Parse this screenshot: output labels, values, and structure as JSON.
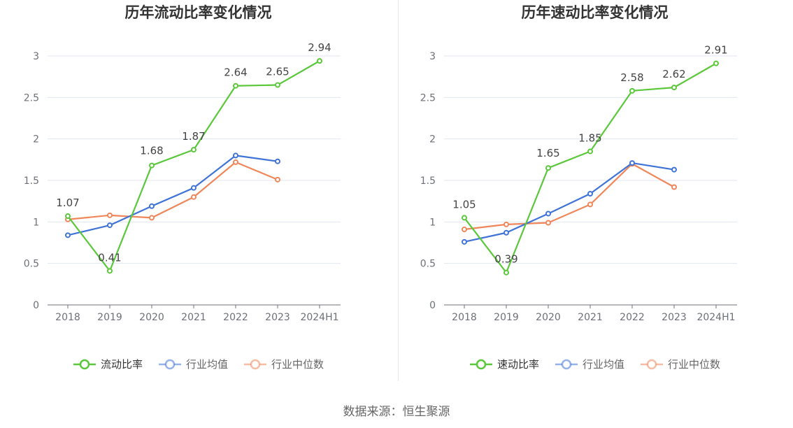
{
  "chart_data": [
    {
      "type": "line",
      "title": "历年流动比率变化情况",
      "categories": [
        "2018",
        "2019",
        "2020",
        "2021",
        "2022",
        "2023",
        "2024H1"
      ],
      "ylim": [
        0,
        3
      ],
      "yticks": [
        "0",
        "0.5",
        "1",
        "1.5",
        "2",
        "2.5",
        "3"
      ],
      "grid": true,
      "legend_position": "bottom",
      "series": [
        {
          "name": "流动比率",
          "color": "#5ac83a",
          "values": [
            1.07,
            0.41,
            1.68,
            1.87,
            2.64,
            2.65,
            2.94
          ],
          "labels": [
            "1.07",
            "0.41",
            "1.68",
            "1.87",
            "2.64",
            "2.65",
            "2.94"
          ]
        },
        {
          "name": "行业均值",
          "color": "#3f73d8",
          "values": [
            0.84,
            0.96,
            1.19,
            1.41,
            1.8,
            1.73,
            null
          ]
        },
        {
          "name": "行业中位数",
          "color": "#f0875a",
          "values": [
            1.03,
            1.08,
            1.05,
            1.3,
            1.72,
            1.51,
            null
          ]
        }
      ]
    },
    {
      "type": "line",
      "title": "历年速动比率变化情况",
      "categories": [
        "2018",
        "2019",
        "2020",
        "2021",
        "2022",
        "2023",
        "2024H1"
      ],
      "ylim": [
        0,
        3
      ],
      "yticks": [
        "0",
        "0.5",
        "1",
        "1.5",
        "2",
        "2.5",
        "3"
      ],
      "grid": true,
      "legend_position": "bottom",
      "series": [
        {
          "name": "速动比率",
          "color": "#5ac83a",
          "values": [
            1.05,
            0.39,
            1.65,
            1.85,
            2.58,
            2.62,
            2.91
          ],
          "labels": [
            "1.05",
            "0.39",
            "1.65",
            "1.85",
            "2.58",
            "2.62",
            "2.91"
          ]
        },
        {
          "name": "行业均值",
          "color": "#3f73d8",
          "values": [
            0.76,
            0.87,
            1.1,
            1.34,
            1.71,
            1.63,
            null
          ]
        },
        {
          "name": "行业中位数",
          "color": "#f0875a",
          "values": [
            0.91,
            0.97,
            0.99,
            1.21,
            1.7,
            1.42,
            null
          ]
        }
      ]
    }
  ],
  "source": "数据来源：恒生聚源"
}
